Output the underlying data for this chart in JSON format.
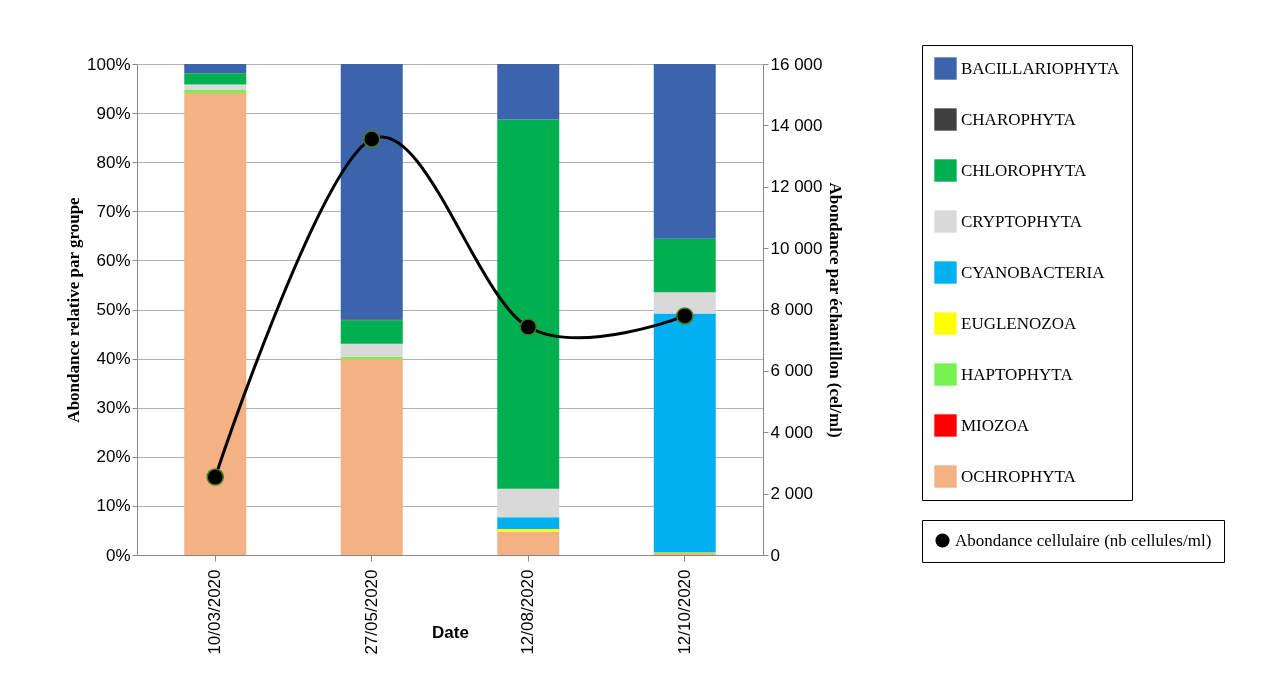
{
  "chart_data": {
    "type": "bar",
    "stacked": true,
    "xlabel": "Date",
    "ylabel": "Abondance relative par groupe",
    "y2label": "Abondance par échantillon (cel/ml)",
    "categories": [
      "10/03/2020",
      "27/05/2020",
      "12/08/2020",
      "12/10/2020"
    ],
    "ylim": [
      0,
      100
    ],
    "yticks": [
      {
        "value": 0,
        "label": "0%"
      },
      {
        "value": 10,
        "label": "10%"
      },
      {
        "value": 20,
        "label": "20%"
      },
      {
        "value": 30,
        "label": "30%"
      },
      {
        "value": 40,
        "label": "40%"
      },
      {
        "value": 50,
        "label": "50%"
      },
      {
        "value": 60,
        "label": "60%"
      },
      {
        "value": 70,
        "label": "70%"
      },
      {
        "value": 80,
        "label": "80%"
      },
      {
        "value": 90,
        "label": "90%"
      },
      {
        "value": 100,
        "label": "100%"
      }
    ],
    "y2lim": [
      0,
      16000
    ],
    "y2ticks": [
      0,
      {
        "value": 2000,
        "label": "2 000"
      },
      {
        "value": 4000,
        "label": "4 000"
      },
      {
        "value": 6000,
        "label": "6 000"
      },
      {
        "value": 8000,
        "label": "8 000"
      },
      {
        "value": 10000,
        "label": "10 000"
      },
      {
        "value": 12000,
        "label": "12 000"
      },
      {
        "value": 14000,
        "label": "14 000"
      },
      {
        "value": 16000,
        "label": "16 000"
      }
    ],
    "grid": "y",
    "legend": "right",
    "series": [
      {
        "name": "OCHROPHYTA",
        "color": "#f4b183",
        "values": [
          94.1,
          39.9,
          4.8,
          0.4
        ]
      },
      {
        "name": "MIOZOA",
        "color": "#ff0000",
        "values": [
          0,
          0,
          0,
          0
        ]
      },
      {
        "name": "HAPTOPHYTA",
        "color": "#77f24f",
        "values": [
          0.6,
          0.5,
          0,
          0.2
        ]
      },
      {
        "name": "EUGLENOZOA",
        "color": "#ffff00",
        "values": [
          0,
          0,
          0.5,
          0
        ]
      },
      {
        "name": "CYANOBACTERIA",
        "color": "#00b0f0",
        "values": [
          0,
          0,
          2.4,
          48.6
        ]
      },
      {
        "name": "CRYPTOPHYTA",
        "color": "#d9d9d9",
        "values": [
          1.1,
          2.6,
          5.8,
          4.3
        ]
      },
      {
        "name": "CHLOROPHYTA",
        "color": "#00b050",
        "values": [
          2.3,
          4.8,
          75.2,
          10.9
        ]
      },
      {
        "name": "CHAROPHYTA",
        "color": "#404040",
        "values": [
          0,
          0.2,
          0,
          0
        ]
      },
      {
        "name": "BACILLARIOPHYTA",
        "color": "#3b64ad",
        "values": [
          1.9,
          52.0,
          11.3,
          35.6
        ]
      },
      {
        "name": "Abondance cellulaire (nb cellules/ml)",
        "type": "line",
        "axis": "y2",
        "color": "#000000",
        "marker": "circle",
        "line_style": "solid",
        "values": [
          2540,
          13550,
          7430,
          7790
        ]
      }
    ]
  }
}
